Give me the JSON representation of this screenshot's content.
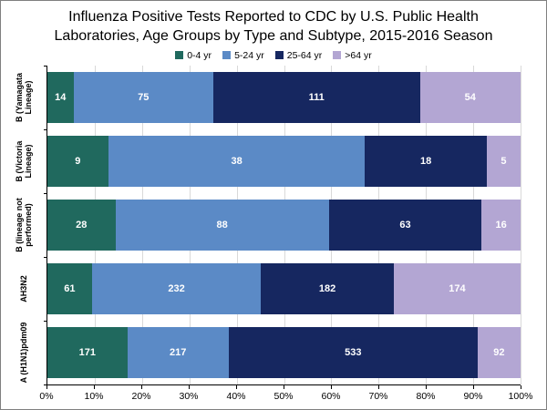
{
  "title_lines": [
    "Influenza Positive Tests Reported to CDC by U.S. Public Health",
    "Laboratories, Age Groups by Type and Subtype, 2015-2016 Season"
  ],
  "chart_data": {
    "type": "bar",
    "orientation": "horizontal",
    "stacking": "percent",
    "title": "Influenza Positive Tests Reported to CDC by U.S. Public Health Laboratories, Age Groups by Type and Subtype, 2015-2016 Season",
    "categories": [
      "B (Yamagata Lineage)",
      "B (Victoria Lineage)",
      "B (lineage not performed)",
      "AH3N2",
      "A (H1N1)pdm09"
    ],
    "series": [
      {
        "name": "0-4 yr",
        "color": "#20695e",
        "values": [
          14,
          9,
          28,
          61,
          171
        ]
      },
      {
        "name": "5-24 yr",
        "color": "#5b8ac6",
        "values": [
          75,
          38,
          88,
          232,
          217
        ]
      },
      {
        "name": "25-64 yr",
        "color": "#162760",
        "values": [
          111,
          18,
          63,
          182,
          533
        ]
      },
      {
        "name": ">64 yr",
        "color": "#b3a6d3",
        "values": [
          54,
          5,
          16,
          174,
          92
        ]
      }
    ],
    "x_ticks": [
      "0%",
      "10%",
      "20%",
      "30%",
      "40%",
      "50%",
      "60%",
      "70%",
      "80%",
      "90%",
      "100%"
    ],
    "xlim": [
      0,
      100
    ],
    "xlabel": "",
    "ylabel": "",
    "legend_position": "top",
    "gridlines": "vertical",
    "data_labels": true,
    "data_label_color": "#ffffff"
  }
}
